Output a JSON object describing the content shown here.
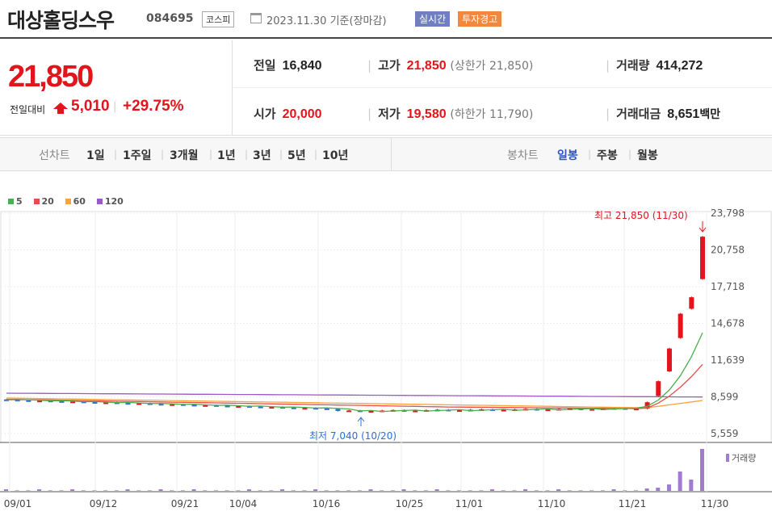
{
  "header": {
    "stock_name": "대상홀딩스우",
    "stock_code": "084695",
    "market": "코스피",
    "date": "2023.11.30",
    "date_suffix": "기준(장마감)",
    "realtime_badge": "실시간",
    "warning_badge": "투자경고"
  },
  "quote": {
    "price": "21,850",
    "change_label": "전일대비",
    "change": "5,010",
    "change_rate": "+29.75%",
    "prev_close_label": "전일",
    "prev_close": "16,840",
    "high_label": "고가",
    "high": "21,850",
    "upper_limit_text": "(상한가 21,850)",
    "volume_label": "거래량",
    "volume": "414,272",
    "open_label": "시가",
    "open": "20,000",
    "low_label": "저가",
    "low": "19,580",
    "lower_limit_text": "(하한가 11,790)",
    "amount_label": "거래대금",
    "amount": "8,651",
    "amount_unit": "백만"
  },
  "tabs": {
    "line_label": "선차트",
    "periods": [
      "1일",
      "1주일",
      "3개월",
      "1년",
      "3년",
      "5년",
      "10년"
    ],
    "candle_label": "봉차트",
    "candle_types": [
      "일봉",
      "주봉",
      "월봉"
    ],
    "active_candle": "일봉"
  },
  "chart_data": {
    "type": "candlestick",
    "moving_averages": [
      {
        "name": "5",
        "color": "#4cae4c"
      },
      {
        "name": "20",
        "color": "#e84c4c"
      },
      {
        "name": "60",
        "color": "#f3a43f"
      },
      {
        "name": "120",
        "color": "#9b59c6"
      }
    ],
    "y_ticks": [
      "23,798",
      "20,758",
      "17,718",
      "14,678",
      "11,639",
      "8,599",
      "5,559"
    ],
    "ylim": [
      5559,
      23798
    ],
    "x_ticks": [
      "09/01",
      "09/12",
      "09/21",
      "10/04",
      "10/16",
      "10/25",
      "11/01",
      "11/10",
      "11/21",
      "11/30"
    ],
    "high_annotation": "최고 21,850 (11/30)",
    "low_annotation": "최저 7,040 (10/20)",
    "volume_label": "거래량",
    "colors": {
      "up": "#e3141b",
      "down": "#2c6fd6"
    }
  }
}
